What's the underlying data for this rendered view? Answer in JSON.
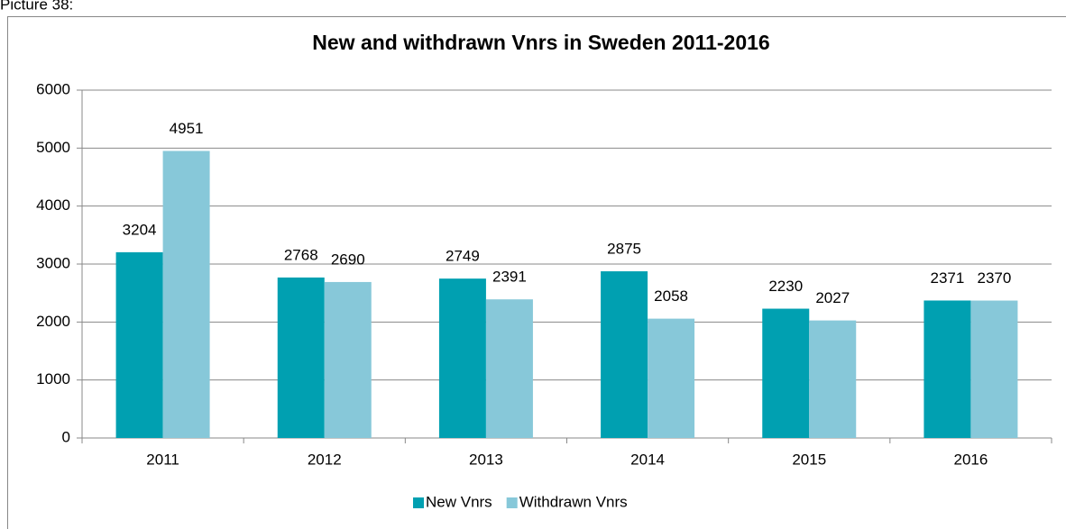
{
  "caption": "Picture 38:",
  "chart_data": {
    "type": "bar",
    "title": "New and withdrawn Vnrs in Sweden 2011-2016",
    "categories": [
      "2011",
      "2012",
      "2013",
      "2014",
      "2015",
      "2016"
    ],
    "series": [
      {
        "name": "New Vnrs",
        "color": "#00a0b1",
        "values": [
          3204,
          2768,
          2749,
          2875,
          2230,
          2371
        ]
      },
      {
        "name": "Withdrawn Vnrs",
        "color": "#87c8d9",
        "values": [
          4951,
          2690,
          2391,
          2058,
          2027,
          2370
        ]
      }
    ],
    "ylim": [
      0,
      6000
    ],
    "yticks": [
      0,
      1000,
      2000,
      3000,
      4000,
      5000,
      6000
    ],
    "grid": true,
    "legend": "bottom",
    "data_labels": true
  }
}
